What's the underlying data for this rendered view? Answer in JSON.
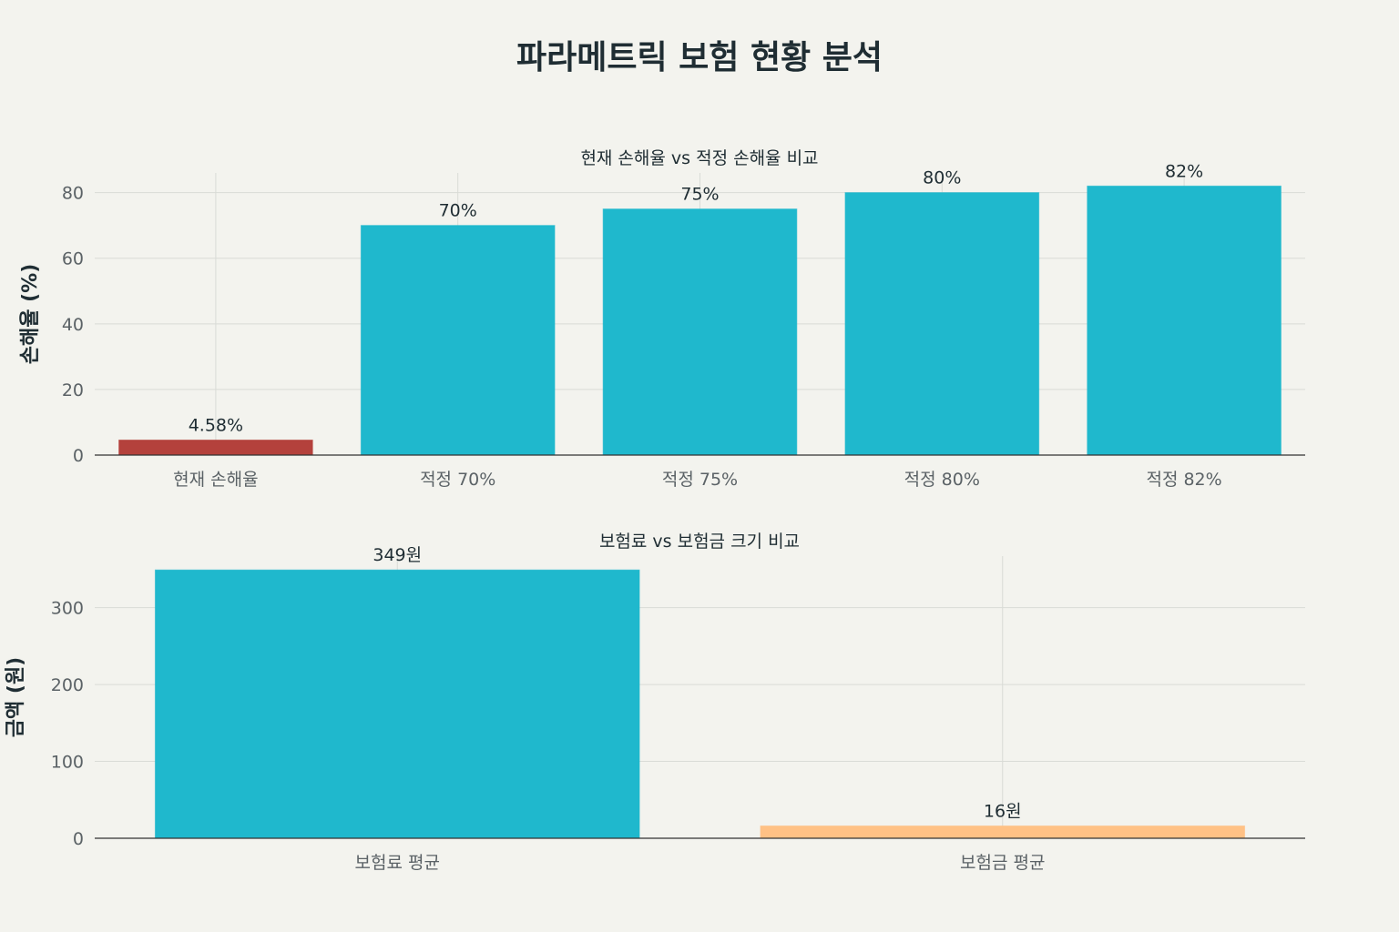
{
  "title": "파라메트릭 보험 현황 분석",
  "chart_data": [
    {
      "type": "bar",
      "title": "현재 손해율 vs 적정 손해율 비교",
      "ylabel": "손해율 (%)",
      "xlabel": "",
      "categories": [
        "현재 손해율",
        "적정 70%",
        "적정 75%",
        "적정 80%",
        "적정 82%"
      ],
      "values": [
        4.58,
        70,
        75,
        80,
        82
      ],
      "value_labels": [
        "4.58%",
        "70%",
        "75%",
        "80%",
        "82%"
      ],
      "colors": [
        "#b4413c",
        "#1fb8cd",
        "#1fb8cd",
        "#1fb8cd",
        "#1fb8cd"
      ],
      "yticks": [
        0,
        20,
        40,
        60,
        80
      ],
      "ylim": [
        0,
        86
      ],
      "grid": true
    },
    {
      "type": "bar",
      "title": "보험료 vs 보험금 크기 비교",
      "ylabel": "금액 (원)",
      "xlabel": "",
      "categories": [
        "보험료 평균",
        "보험금 평균"
      ],
      "values": [
        349,
        16
      ],
      "value_labels": [
        "349원",
        "16원"
      ],
      "colors": [
        "#1fb8cd",
        "#ffc185"
      ],
      "yticks": [
        0,
        100,
        200,
        300
      ],
      "ylim": [
        0,
        367
      ],
      "grid": true
    }
  ]
}
